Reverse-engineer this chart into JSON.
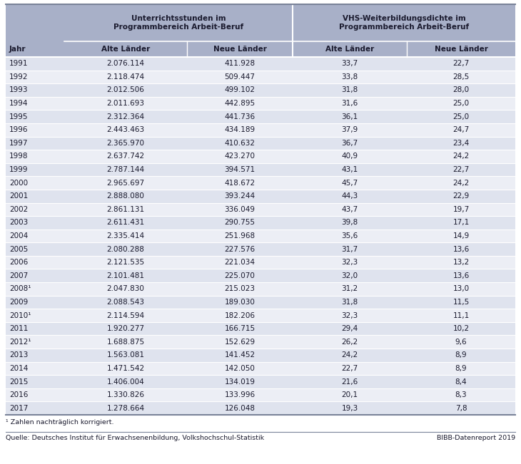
{
  "col_header_row1_left": "Unterrichtsstunden im\nProgrammbereich Arbeit-Beruf",
  "col_header_row1_right": "VHS-Weiterbildungsdichte im\nProgrammbereich Arbeit-Beruf",
  "col_header_row2": [
    "Jahr",
    "Alte Länder",
    "Neue Länder",
    "Alte Länder",
    "Neue Länder"
  ],
  "rows": [
    [
      "1991",
      "2.076.114",
      "411.928",
      "33,7",
      "22,7"
    ],
    [
      "1992",
      "2.118.474",
      "509.447",
      "33,8",
      "28,5"
    ],
    [
      "1993",
      "2.012.506",
      "499.102",
      "31,8",
      "28,0"
    ],
    [
      "1994",
      "2.011.693",
      "442.895",
      "31,6",
      "25,0"
    ],
    [
      "1995",
      "2.312.364",
      "441.736",
      "36,1",
      "25,0"
    ],
    [
      "1996",
      "2.443.463",
      "434.189",
      "37,9",
      "24,7"
    ],
    [
      "1997",
      "2.365.970",
      "410.632",
      "36,7",
      "23,4"
    ],
    [
      "1998",
      "2.637.742",
      "423.270",
      "40,9",
      "24,2"
    ],
    [
      "1999",
      "2.787.144",
      "394.571",
      "43,1",
      "22,7"
    ],
    [
      "2000",
      "2.965.697",
      "418.672",
      "45,7",
      "24,2"
    ],
    [
      "2001",
      "2.888.080",
      "393.244",
      "44,3",
      "22,9"
    ],
    [
      "2002",
      "2.861.131",
      "336.049",
      "43,7",
      "19,7"
    ],
    [
      "2003",
      "2.611.431",
      "290.755",
      "39,8",
      "17,1"
    ],
    [
      "2004",
      "2.335.414",
      "251.968",
      "35,6",
      "14,9"
    ],
    [
      "2005",
      "2.080.288",
      "227.576",
      "31,7",
      "13,6"
    ],
    [
      "2006",
      "2.121.535",
      "221.034",
      "32,3",
      "13,2"
    ],
    [
      "2007",
      "2.101.481",
      "225.070",
      "32,0",
      "13,6"
    ],
    [
      "2008¹",
      "2.047.830",
      "215.023",
      "31,2",
      "13,0"
    ],
    [
      "2009",
      "2.088.543",
      "189.030",
      "31,8",
      "11,5"
    ],
    [
      "2010¹",
      "2.114.594",
      "182.206",
      "32,3",
      "11,1"
    ],
    [
      "2011",
      "1.920.277",
      "166.715",
      "29,4",
      "10,2"
    ],
    [
      "2012¹",
      "1.688.875",
      "152.629",
      "26,2",
      "9,6"
    ],
    [
      "2013",
      "1.563.081",
      "141.452",
      "24,2",
      "8,9"
    ],
    [
      "2014",
      "1.471.542",
      "142.050",
      "22,7",
      "8,9"
    ],
    [
      "2015",
      "1.406.004",
      "134.019",
      "21,6",
      "8,4"
    ],
    [
      "2016",
      "1.330.826",
      "133.996",
      "20,1",
      "8,3"
    ],
    [
      "2017",
      "1.278.664",
      "126.048",
      "19,3",
      "7,8"
    ]
  ],
  "footnote": "¹ Zahlen nachträglich korrigiert.",
  "source_left": "Quelle: Deutsches Institut für Erwachsenenbildung, Volkshochschul-Statistik",
  "source_right": "BIBB-Datenreport 2019",
  "header_bg": "#A8B0C8",
  "row_even_bg": "#DFE3EE",
  "row_odd_bg": "#ECEEF5",
  "text_color": "#1A1A2E",
  "white": "#FFFFFF"
}
